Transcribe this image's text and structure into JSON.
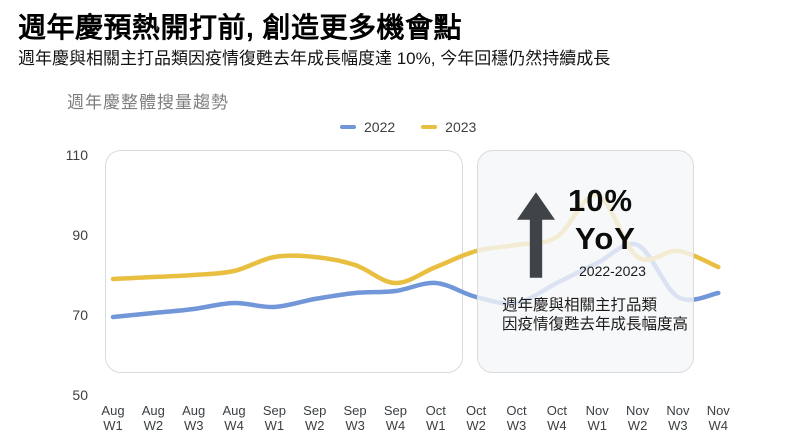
{
  "slide": {
    "title": "週年慶預熱開打前, 創造更多機會點",
    "subtitle": "週年慶與相關主打品類因疫情復甦去年成長幅度達 10%, 今年回穩仍然持續成長"
  },
  "annotation": {
    "percent": "10%",
    "yoy": "YoY",
    "range": "2022-2023",
    "note_line1": "週年慶與相關主打品類",
    "note_line2": "因疫情復甦去年成長幅度高",
    "arrow_color": "#3f4449"
  },
  "colors": {
    "panel_border": "#d9dbde",
    "panel_fill": "rgba(245,246,247,0.8)",
    "axis_text": "#3c4043"
  },
  "chart_data": {
    "type": "line",
    "title": "週年慶整體搜量趨勢",
    "categories": [
      "Aug W1",
      "Aug W2",
      "Aug W3",
      "Aug W4",
      "Sep W1",
      "Sep W2",
      "Sep W3",
      "Sep W4",
      "Oct W1",
      "Oct W2",
      "Oct W3",
      "Oct W4",
      "Nov W1",
      "Nov W2",
      "Nov W3",
      "Nov W4"
    ],
    "series": [
      {
        "name": "2022",
        "color": "#7297d9",
        "values": [
          69.5,
          70.5,
          71.5,
          73,
          72,
          74,
          75.5,
          76,
          78,
          74.5,
          73,
          78,
          83,
          87.5,
          74.5,
          75.5
        ]
      },
      {
        "name": "2023",
        "color": "#e9bf41",
        "values": [
          79,
          79.5,
          80,
          81,
          84.5,
          84.5,
          82.5,
          78,
          82,
          86,
          87.5,
          89.5,
          100,
          84.5,
          86,
          82
        ]
      }
    ],
    "y_ticks": [
      110,
      90,
      70,
      50
    ],
    "ylim": [
      50,
      110
    ],
    "xlabel": "",
    "ylabel": "",
    "grid": false,
    "legend_position": "top",
    "highlight_region": {
      "from": "Oct W2",
      "to": "Nov W3",
      "note": "10% YoY 2022-2023"
    }
  }
}
